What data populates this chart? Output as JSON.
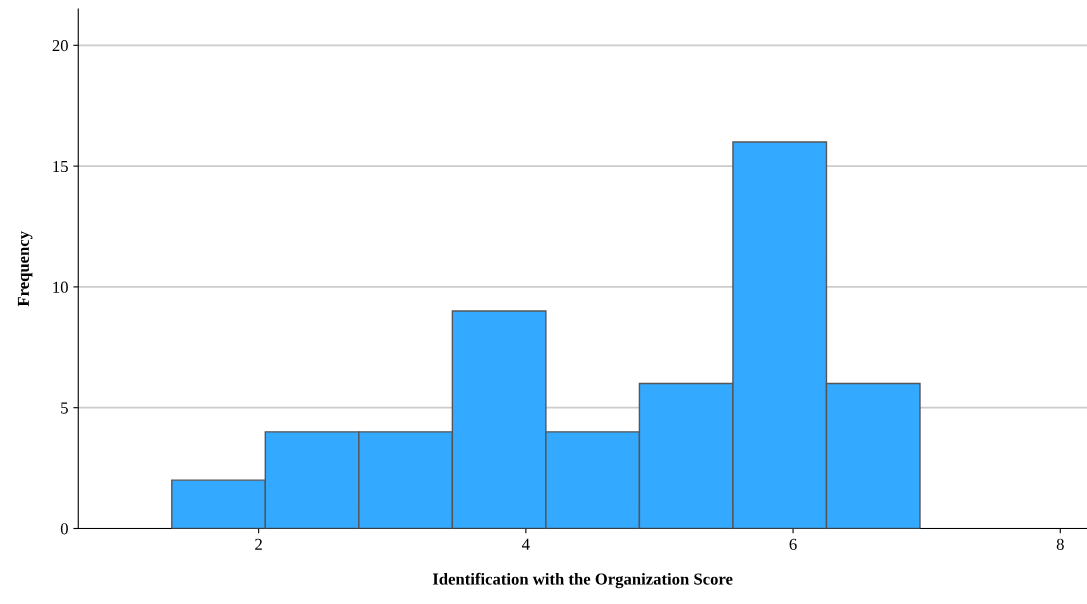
{
  "chart_data": {
    "type": "histogram",
    "xlabel": "Identification with the Organization Score",
    "ylabel": "Frequency",
    "bins": [
      1.35,
      2.05,
      2.75,
      3.45,
      4.15,
      4.85,
      5.55,
      6.25,
      6.95
    ],
    "values": [
      2,
      4,
      4,
      9,
      4,
      6,
      16,
      6
    ],
    "color": "#33aaff",
    "xlim": [
      0.65,
      8.2
    ],
    "xticks": [
      2,
      4,
      6,
      8
    ],
    "ylim": [
      0,
      21.5
    ],
    "yticks": [
      0,
      5,
      10,
      15,
      20
    ],
    "grid": "y"
  }
}
